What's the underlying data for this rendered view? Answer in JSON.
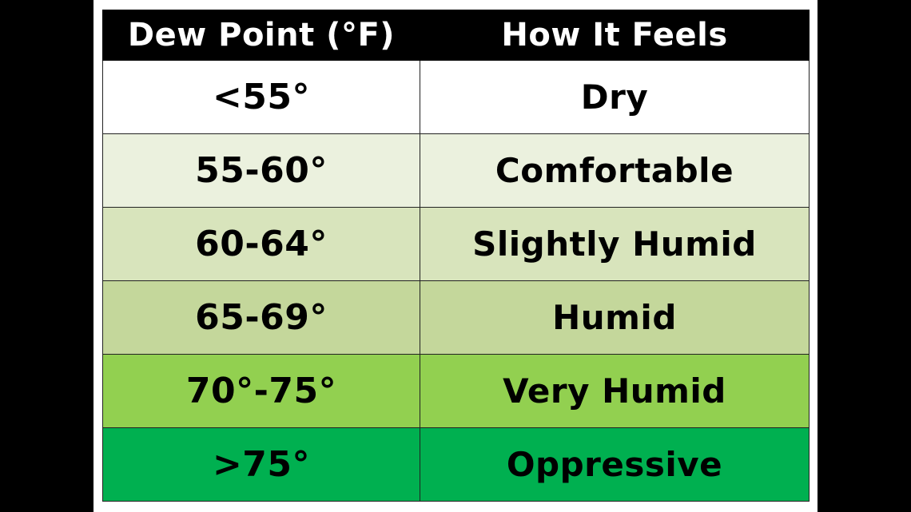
{
  "table": {
    "headers": [
      "Dew Point (°F)",
      "How It Feels"
    ],
    "rows": [
      {
        "dew_point": "<55°",
        "feels": "Dry",
        "color": "#ffffff"
      },
      {
        "dew_point": "55-60°",
        "feels": "Comfortable",
        "color": "#ebf1de"
      },
      {
        "dew_point": "60-64°",
        "feels": "Slightly Humid",
        "color": "#d8e4bc"
      },
      {
        "dew_point": "65-69°",
        "feels": "Humid",
        "color": "#c4d79b"
      },
      {
        "dew_point": "70°-75°",
        "feels": "Very Humid",
        "color": "#92d050"
      },
      {
        "dew_point": ">75°",
        "feels": "Oppressive",
        "color": "#00b050"
      }
    ]
  }
}
